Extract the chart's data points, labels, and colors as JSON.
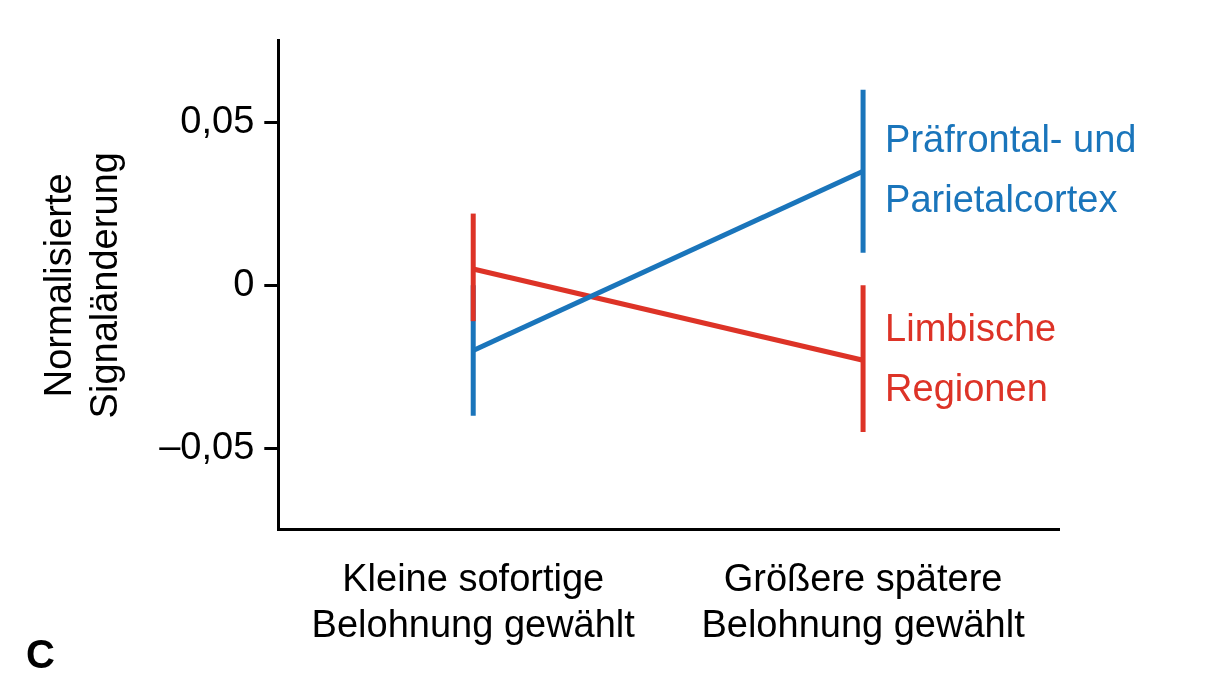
{
  "chart_data": {
    "type": "line",
    "ylabel": "Normalisierte Signaländerung",
    "categories": [
      "Kleine sofortige Belohnung gewählt",
      "Größere spätere Belohnung gewählt"
    ],
    "series": [
      {
        "name": "Präfrontal- und Parietalcortex",
        "color": "#1a75bb",
        "values": [
          -0.02,
          0.035
        ],
        "errors": [
          [
            -0.04,
            0
          ],
          [
            0.01,
            0.06
          ]
        ]
      },
      {
        "name": "Limbische Regionen",
        "color": "#dd3327",
        "values": [
          0.005,
          -0.023
        ],
        "errors": [
          [
            -0.011,
            0.022
          ],
          [
            -0.045,
            0
          ]
        ]
      }
    ],
    "ylim": [
      -0.075,
      0.075
    ],
    "yticks": [
      {
        "value": -0.05,
        "label": "–0,05"
      },
      {
        "value": 0,
        "label": "0"
      },
      {
        "value": 0.05,
        "label": "0,05"
      }
    ],
    "grid": false,
    "legend": false,
    "marker": "none",
    "line_style": "solid",
    "annotations": [
      "C"
    ]
  }
}
